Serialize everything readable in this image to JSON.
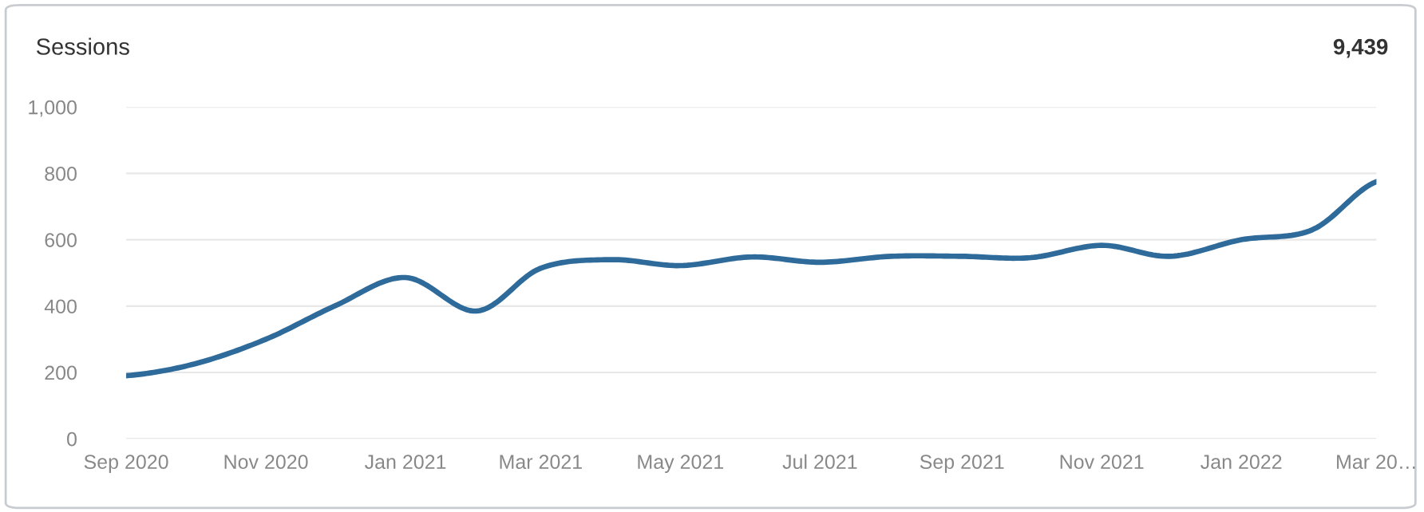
{
  "chart_data": {
    "type": "line",
    "title": "Sessions",
    "annotations": [
      "9,439"
    ],
    "x": [
      "2020-09",
      "2020-10",
      "2020-11",
      "2020-12",
      "2021-01",
      "2021-02",
      "2021-03",
      "2021-04",
      "2021-05",
      "2021-06",
      "2021-07",
      "2021-08",
      "2021-09",
      "2021-10",
      "2021-11",
      "2021-12",
      "2022-01",
      "2022-02",
      "2022-03"
    ],
    "series": [
      {
        "color": "#2e6a9a",
        "values": [
          190,
          226,
          300,
          400,
          486,
          385,
          514,
          540,
          522,
          548,
          532,
          550,
          550,
          546,
          583,
          550,
          600,
          630,
          775
        ]
      }
    ],
    "xlim": [
      "2020-09",
      "2022-03"
    ],
    "xticks": [
      {
        "value": "2020-09",
        "label": "Sep 2020"
      },
      {
        "value": "2020-11",
        "label": "Nov 2020"
      },
      {
        "value": "2021-01",
        "label": "Jan 2021"
      },
      {
        "value": "2021-03",
        "label": "Mar 2021"
      },
      {
        "value": "2021-05",
        "label": "May 2021"
      },
      {
        "value": "2021-07",
        "label": "Jul 2021"
      },
      {
        "value": "2021-09",
        "label": "Sep 2021"
      },
      {
        "value": "2021-11",
        "label": "Nov 2021"
      },
      {
        "value": "2022-01",
        "label": "Jan 2022"
      },
      {
        "value": "2022-03",
        "label": "Mar 20…"
      }
    ],
    "ylim": [
      0,
      1000
    ],
    "yticks": [
      0,
      200,
      400,
      600,
      800,
      {
        "value": 1000,
        "label": "1,000"
      }
    ],
    "grid": "y",
    "marker": "none",
    "line_style": "solid"
  }
}
